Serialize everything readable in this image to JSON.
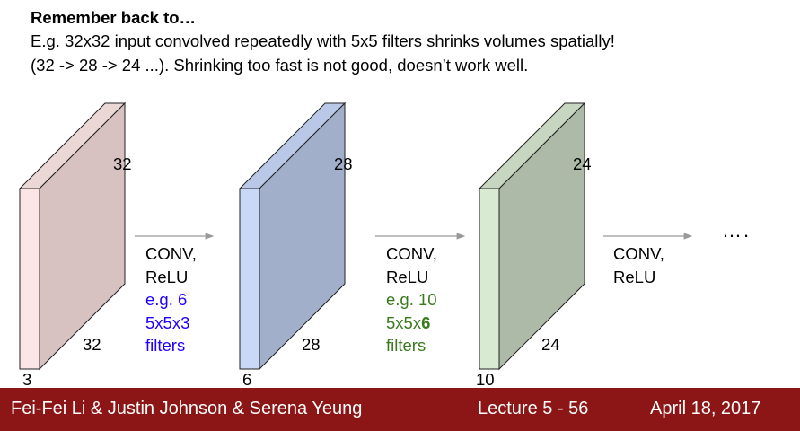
{
  "heading": "Remember back to…",
  "body": {
    "line1": "E.g. 32x32 input convolved repeatedly with 5x5 filters shrinks volumes spatially!",
    "line2": "(32 -> 28 -> 24 ...). Shrinking too fast is not good, doesn’t work well."
  },
  "volumes": [
    {
      "height_label": "32",
      "width_label": "32",
      "depth_label": "3"
    },
    {
      "height_label": "28",
      "width_label": "28",
      "depth_label": "6"
    },
    {
      "height_label": "24",
      "width_label": "24",
      "depth_label": "10"
    }
  ],
  "steps": [
    {
      "op": "CONV,",
      "act": "ReLU",
      "ex1": "e.g. 6",
      "ex2": "5x5x3",
      "ex3": "filters"
    },
    {
      "op": "CONV,",
      "act": "ReLU",
      "ex1": "e.g. 10",
      "ex2_prefix": "5x5x",
      "ex2_bold": "6",
      "ex3": "filters"
    },
    {
      "op": "CONV,",
      "act": "ReLU"
    }
  ],
  "ellipsis": "….",
  "footer": {
    "authors": "Fei-Fei Li & Justin Johnson & Serena Yeung",
    "lecture": "Lecture 5 - 56",
    "date": "April 18, 2017"
  },
  "colors": {
    "volume1_front": "#fbe5e6",
    "volume1_side": "#d8c1c1",
    "volume2_front": "#c8d8f6",
    "volume2_side": "#a1afcb",
    "volume3_front": "#d9ead3",
    "volume3_side": "#aebaa8",
    "blue_text": "#1f00ff",
    "green_text": "#3a7a1e",
    "footer_bg": "#8c1515"
  }
}
